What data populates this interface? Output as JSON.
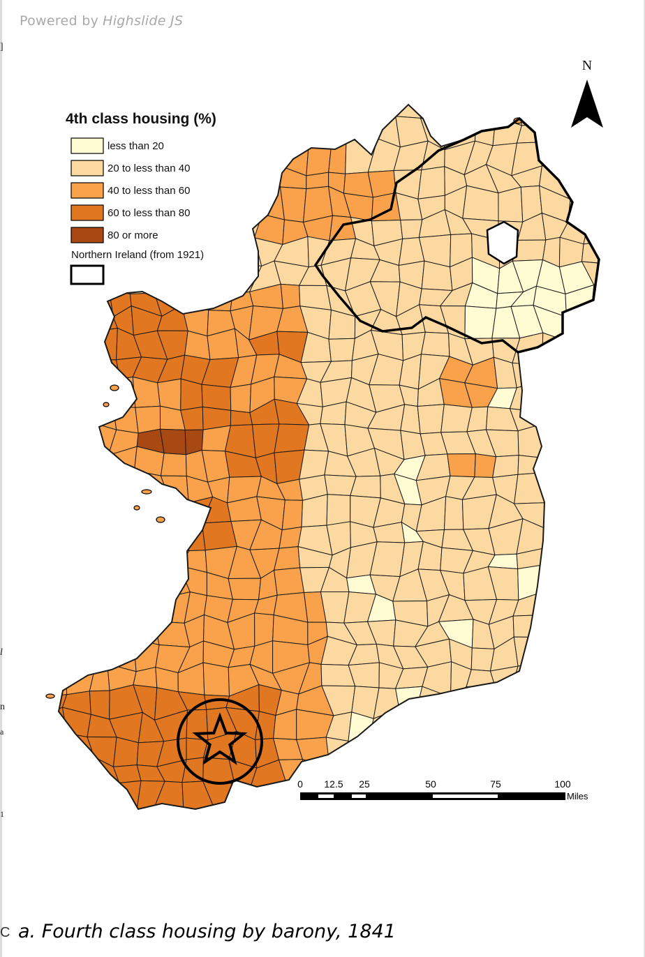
{
  "viewer": {
    "powered_by": "Powered by",
    "brand": "Highslide JS"
  },
  "edge_marks": [
    "]",
    "l",
    "n",
    "a",
    "1",
    "C"
  ],
  "map": {
    "legend": {
      "title": "4th class housing (%)",
      "items": [
        {
          "label": "less than 20",
          "color": "#fffbd2"
        },
        {
          "label": "20 to less than 40",
          "color": "#fdd9a2"
        },
        {
          "label": "40 to less than 60",
          "color": "#f9a24b"
        },
        {
          "label": "60 to less than 80",
          "color": "#e17720"
        },
        {
          "label": "80 or more",
          "color": "#a84812"
        }
      ],
      "boundary_label": "Northern Ireland (from 1921)"
    },
    "north_label": "N",
    "scale_bar": {
      "ticks": [
        "0",
        "12.5",
        "25",
        "50",
        "75",
        "100"
      ],
      "unit": "Miles"
    },
    "colors": {
      "border": "#1a1a1a",
      "ni_border": "#000000",
      "sea": "#ffffff"
    }
  },
  "caption": "a. Fourth class housing by barony, 1841"
}
